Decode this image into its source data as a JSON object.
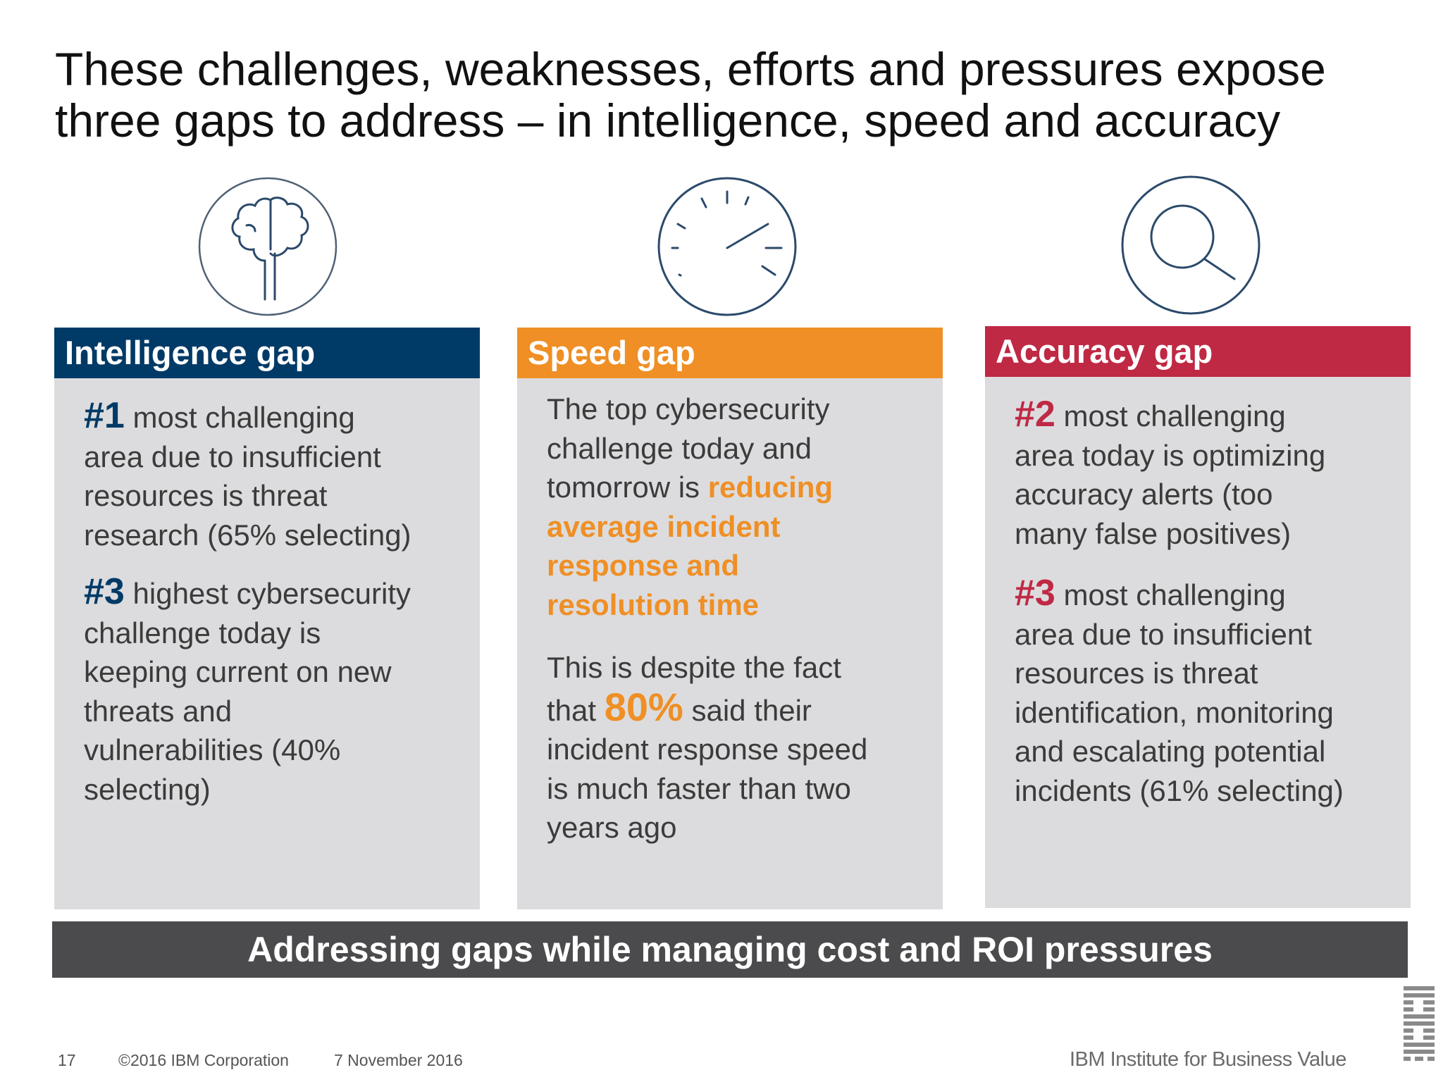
{
  "slide": {
    "title_line1": "These challenges, weaknesses, efforts and pressures expose",
    "title_line2": "three gaps to address – in intelligence, speed and accuracy"
  },
  "colors": {
    "intelligence": "#003a66",
    "speed": "#ef8f25",
    "accuracy": "#bf2944",
    "panel": "#dcdcde",
    "bar": "#4b4b4d",
    "icon_stroke": "#2b4a6b"
  },
  "columns": {
    "intelligence": {
      "icon": "brain-icon",
      "header": "Intelligence gap",
      "p1_rank": "#1",
      "p1_line1": "most challenging",
      "p1_line2": "area due to insufficient",
      "p1_line3": "resources is threat",
      "p1_line4": "research (65% selecting)",
      "p2_rank": "#3",
      "p2_line1": "highest cybersecurity",
      "p2_line2": "challenge today is",
      "p2_line3": "keeping current on new",
      "p2_line4": "threats and",
      "p2_line5": "vulnerabilities (40%",
      "p2_line6": "selecting)"
    },
    "speed": {
      "icon": "speedometer-icon",
      "header": "Speed gap",
      "p1_line1": "The top cybersecurity",
      "p1_line2": "challenge today and",
      "p1_line3_a": "tomorrow is ",
      "p1_line3_b": "reducing",
      "p1_line4": "average incident",
      "p1_line5": "response and",
      "p1_line6": "resolution time",
      "p2_line1": "This is despite the fact",
      "p2_line2_a": "that ",
      "p2_line2_pct": "80%",
      "p2_line2_b": " said their",
      "p2_line3": "incident response speed",
      "p2_line4": "is much faster than two",
      "p2_line5": "years ago"
    },
    "accuracy": {
      "icon": "magnifier-icon",
      "header": "Accuracy gap",
      "p1_rank": "#2",
      "p1_line1": "most challenging",
      "p1_line2": "area today is optimizing",
      "p1_line3": "accuracy alerts (too",
      "p1_line4": "many false positives)",
      "p2_rank": "#3",
      "p2_line1": "most challenging",
      "p2_line2": "area due to insufficient",
      "p2_line3": "resources is threat",
      "p2_line4": "identification, monitoring",
      "p2_line5": "and escalating potential",
      "p2_line6": "incidents (61% selecting)"
    }
  },
  "bottom_bar": "Addressing gaps while managing cost and ROI pressures",
  "footer": {
    "page_number": "17",
    "copyright": "©2016 IBM Corporation",
    "date": "7 November 2016",
    "brand": "IBM Institute for Business Value",
    "logo": "IBM"
  }
}
